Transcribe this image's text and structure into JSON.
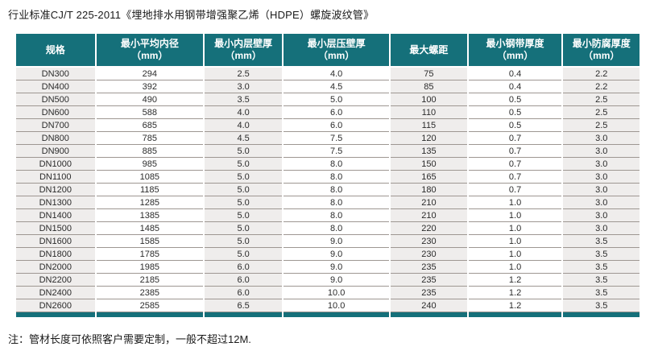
{
  "page": {
    "title": "行业标准CJ/T 225-2011《埋地排水用钢带增强聚乙烯（HDPE）螺旋波纹管》",
    "note": "注：管材长度可依照客户需要定制，一般不超过12M."
  },
  "colors": {
    "header_bg": "#15707a",
    "shaded_column_bg": "#efedec",
    "row_separator": "#9e9792",
    "header_text": "#ffffff",
    "body_text": "#333333"
  },
  "table": {
    "columns": [
      {
        "label": "规格",
        "unit": ""
      },
      {
        "label": "最小平均内径",
        "unit": "（mm）"
      },
      {
        "label": "最小内层壁厚",
        "unit": "（mm）"
      },
      {
        "label": "最小层压壁厚",
        "unit": "（mm）"
      },
      {
        "label": "最大螺距",
        "unit": ""
      },
      {
        "label": "最小钢带厚度",
        "unit": "（mm）"
      },
      {
        "label": "最小防腐厚度",
        "unit": "（mm）"
      }
    ],
    "column_width_percent": [
      12.8,
      17.4,
      12.6,
      17.2,
      12.4,
      15.2,
      12.4
    ],
    "rows": [
      [
        "DN300",
        "294",
        "2.5",
        "4.0",
        "75",
        "0.4",
        "2.2"
      ],
      [
        "DN400",
        "392",
        "3.0",
        "4.5",
        "85",
        "0.4",
        "2.2"
      ],
      [
        "DN500",
        "490",
        "3.5",
        "5.0",
        "100",
        "0.5",
        "2.5"
      ],
      [
        "DN600",
        "588",
        "4.0",
        "6.0",
        "110",
        "0.5",
        "2.5"
      ],
      [
        "DN700",
        "685",
        "4.0",
        "6.0",
        "115",
        "0.5",
        "2.5"
      ],
      [
        "DN800",
        "785",
        "4.5",
        "7.5",
        "120",
        "0.7",
        "3.0"
      ],
      [
        "DN900",
        "885",
        "5.0",
        "7.5",
        "135",
        "0.7",
        "3.0"
      ],
      [
        "DN1000",
        "985",
        "5.0",
        "8.0",
        "150",
        "0.7",
        "3.0"
      ],
      [
        "DN1100",
        "1085",
        "5.0",
        "8.0",
        "165",
        "0.7",
        "3.0"
      ],
      [
        "DN1200",
        "1185",
        "5.0",
        "8.0",
        "180",
        "0.7",
        "3.0"
      ],
      [
        "DN1300",
        "1285",
        "5.0",
        "8.0",
        "210",
        "1.0",
        "3.0"
      ],
      [
        "DN1400",
        "1385",
        "5.0",
        "8.0",
        "210",
        "1.0",
        "3.0"
      ],
      [
        "DN1500",
        "1485",
        "5.0",
        "8.0",
        "220",
        "1.0",
        "3.0"
      ],
      [
        "DN1600",
        "1585",
        "5.0",
        "9.0",
        "230",
        "1.0",
        "3.5"
      ],
      [
        "DN1800",
        "1785",
        "5.0",
        "9.0",
        "230",
        "1.0",
        "3.5"
      ],
      [
        "DN2000",
        "1985",
        "6.0",
        "9.0",
        "235",
        "1.0",
        "3.5"
      ],
      [
        "DN2200",
        "2185",
        "6.0",
        "9.0",
        "235",
        "1.2",
        "3.5"
      ],
      [
        "DN2400",
        "2385",
        "6.0",
        "10.0",
        "235",
        "1.2",
        "3.5"
      ],
      [
        "DN2600",
        "2585",
        "6.5",
        "10.0",
        "240",
        "1.2",
        "3.5"
      ]
    ]
  }
}
